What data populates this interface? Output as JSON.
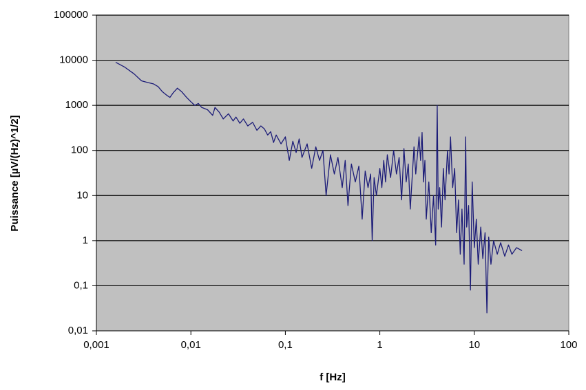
{
  "chart_data": {
    "type": "line",
    "xlabel": "f [Hz]",
    "ylabel": "Puissance [µV/(Hz)^1/2]",
    "xscale": "log",
    "yscale": "log",
    "grid": true,
    "plot_background": "#c0c0c0",
    "xlim": [
      0.001,
      100
    ],
    "ylim": [
      0.01,
      100000
    ],
    "xticks": [
      {
        "value": 0.001,
        "label": "0,001"
      },
      {
        "value": 0.01,
        "label": "0,01"
      },
      {
        "value": 0.1,
        "label": "0,1"
      },
      1,
      10,
      100
    ],
    "yticks": [
      {
        "value": 0.01,
        "label": "0,01"
      },
      {
        "value": 0.1,
        "label": "0,1"
      },
      1,
      10,
      100,
      1000,
      10000,
      100000
    ],
    "x": [
      0.0016,
      0.002,
      0.0025,
      0.003,
      0.0035,
      0.004,
      0.0045,
      0.005,
      0.0055,
      0.006,
      0.0065,
      0.0072,
      0.008,
      0.009,
      0.01,
      0.011,
      0.012,
      0.013,
      0.015,
      0.017,
      0.018,
      0.02,
      0.022,
      0.025,
      0.028,
      0.03,
      0.033,
      0.036,
      0.04,
      0.045,
      0.05,
      0.055,
      0.06,
      0.065,
      0.07,
      0.075,
      0.08,
      0.09,
      0.1,
      0.11,
      0.12,
      0.13,
      0.14,
      0.15,
      0.17,
      0.19,
      0.21,
      0.23,
      0.25,
      0.27,
      0.3,
      0.33,
      0.36,
      0.4,
      0.43,
      0.46,
      0.5,
      0.55,
      0.6,
      0.65,
      0.7,
      0.75,
      0.8,
      0.83,
      0.87,
      0.92,
      1,
      1.05,
      1.1,
      1.15,
      1.2,
      1.3,
      1.4,
      1.5,
      1.6,
      1.7,
      1.8,
      1.9,
      2,
      2.1,
      2.3,
      2.4,
      2.6,
      2.7,
      2.8,
      2.9,
      3,
      3.1,
      3.3,
      3.5,
      3.7,
      3.9,
      4.05,
      4.15,
      4.3,
      4.5,
      4.7,
      4.9,
      5.2,
      5.4,
      5.6,
      5.9,
      6.2,
      6.5,
      6.8,
      7.1,
      7.4,
      7.8,
      8.1,
      8.3,
      8.7,
      9.1,
      9.5,
      10,
      10.5,
      11,
      11.7,
      12.3,
      13,
      13.6,
      14.2,
      15,
      16,
      17.5,
      19,
      21,
      23,
      25,
      28,
      32
    ],
    "series": [
      {
        "color": "#1c1c78",
        "values": [
          9000,
          7000,
          5000,
          3500,
          3200,
          3000,
          2600,
          2000,
          1700,
          1500,
          1900,
          2400,
          2000,
          1500,
          1200,
          1000,
          1100,
          900,
          800,
          600,
          900,
          700,
          500,
          650,
          450,
          550,
          400,
          500,
          350,
          420,
          280,
          350,
          300,
          220,
          260,
          150,
          220,
          140,
          200,
          60,
          160,
          90,
          180,
          70,
          140,
          40,
          120,
          60,
          100,
          10,
          80,
          30,
          70,
          15,
          60,
          6,
          50,
          20,
          45,
          3,
          35,
          15,
          30,
          1,
          25,
          10,
          40,
          15,
          60,
          20,
          80,
          25,
          100,
          30,
          70,
          8,
          110,
          20,
          50,
          5,
          120,
          30,
          200,
          60,
          250,
          20,
          60,
          3,
          20,
          1.5,
          10,
          0.8,
          1000,
          5,
          15,
          2,
          40,
          8,
          100,
          30,
          200,
          15,
          40,
          1.5,
          8,
          0.5,
          5,
          0.3,
          200,
          2,
          6,
          0.08,
          20,
          0.7,
          3,
          0.3,
          2,
          0.4,
          1.5,
          0.025,
          1.2,
          0.3,
          1,
          0.5,
          0.9,
          0.45,
          0.8,
          0.5,
          0.7,
          0.6
        ]
      }
    ]
  }
}
